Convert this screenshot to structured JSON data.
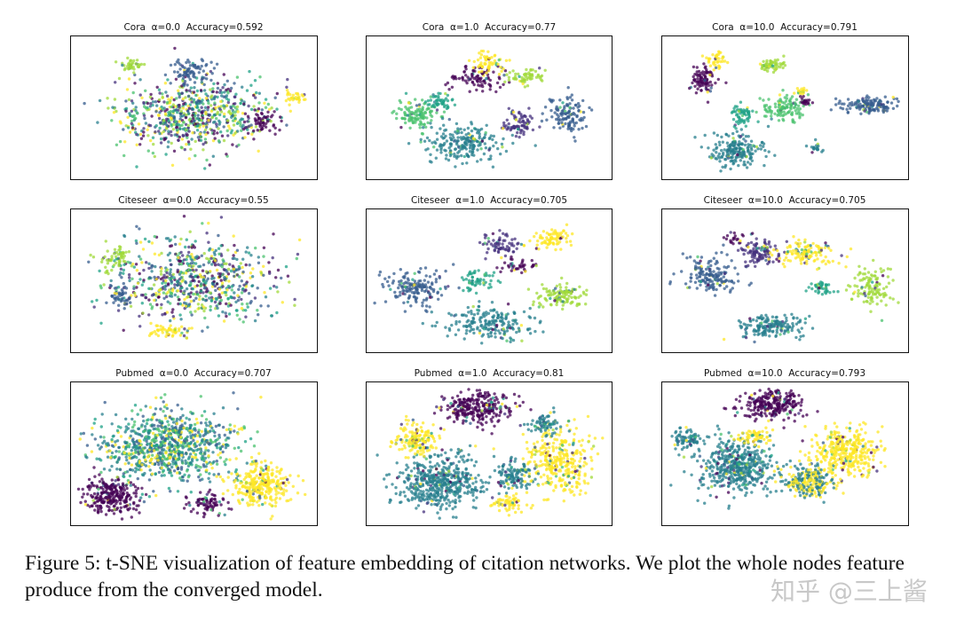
{
  "caption": "Figure 5: t-SNE visualization of feature embedding of citation networks. We plot the whole nodes feature produce from the converged model.",
  "watermark": "知乎 @三上酱",
  "colors": {
    "viridis": [
      "#440154",
      "#46327e",
      "#365c8d",
      "#277f8e",
      "#1fa187",
      "#4ac16d",
      "#a0da39",
      "#fde725"
    ]
  },
  "chart_data": [
    {
      "type": "scatter",
      "dataset": "Cora",
      "alpha": "0.0",
      "accuracy": "0.592",
      "title": "Cora  α=0.0  Accuracy=0.592",
      "axes": "off",
      "grid": false,
      "legend": "none"
    },
    {
      "type": "scatter",
      "dataset": "Cora",
      "alpha": "1.0",
      "accuracy": "0.77",
      "title": "Cora  α=1.0  Accuracy=0.77",
      "axes": "off",
      "grid": false,
      "legend": "none"
    },
    {
      "type": "scatter",
      "dataset": "Cora",
      "alpha": "10.0",
      "accuracy": "0.791",
      "title": "Cora  α=10.0  Accuracy=0.791",
      "axes": "off",
      "grid": false,
      "legend": "none"
    },
    {
      "type": "scatter",
      "dataset": "Citeseer",
      "alpha": "0.0",
      "accuracy": "0.55",
      "title": "Citeseer  α=0.0  Accuracy=0.55",
      "axes": "off",
      "grid": false,
      "legend": "none"
    },
    {
      "type": "scatter",
      "dataset": "Citeseer",
      "alpha": "1.0",
      "accuracy": "0.705",
      "title": "Citeseer  α=1.0  Accuracy=0.705",
      "axes": "off",
      "grid": false,
      "legend": "none"
    },
    {
      "type": "scatter",
      "dataset": "Citeseer",
      "alpha": "10.0",
      "accuracy": "0.705",
      "title": "Citeseer  α=10.0  Accuracy=0.705",
      "axes": "off",
      "grid": false,
      "legend": "none"
    },
    {
      "type": "scatter",
      "dataset": "Pubmed",
      "alpha": "0.0",
      "accuracy": "0.707",
      "title": "Pubmed  α=0.0  Accuracy=0.707",
      "axes": "off",
      "grid": false,
      "legend": "none"
    },
    {
      "type": "scatter",
      "dataset": "Pubmed",
      "alpha": "1.0",
      "accuracy": "0.81",
      "title": "Pubmed  α=1.0  Accuracy=0.81",
      "axes": "off",
      "grid": false,
      "legend": "none"
    },
    {
      "type": "scatter",
      "dataset": "Pubmed",
      "alpha": "10.0",
      "accuracy": "0.793",
      "title": "Pubmed  α=10.0  Accuracy=0.793",
      "axes": "off",
      "grid": false,
      "legend": "none"
    }
  ]
}
